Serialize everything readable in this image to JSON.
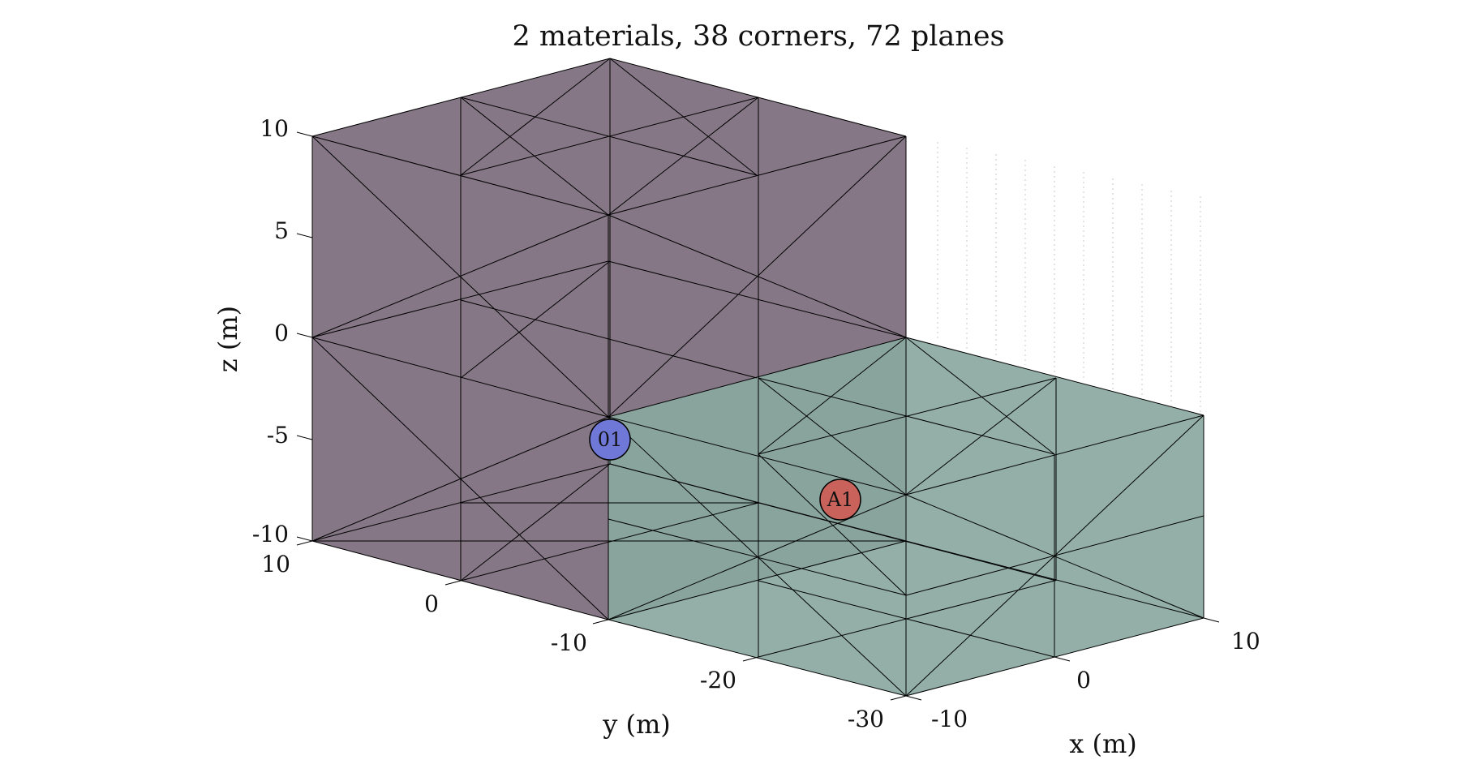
{
  "title": "2 materials, 38 corners, 72 planes",
  "axes": {
    "x": {
      "label": "x (m)",
      "ticks": [
        "-10",
        "0",
        "10"
      ]
    },
    "y": {
      "label": "y (m)",
      "ticks": [
        "10",
        "0",
        "-10",
        "-20",
        "-30"
      ]
    },
    "z": {
      "label": "z (m)",
      "ticks": [
        "10",
        "5",
        "0",
        "-5",
        "-10"
      ]
    }
  },
  "materials": [
    {
      "id": "material-1",
      "color": "#857785"
    },
    {
      "id": "material-2",
      "color": "#8aa8a0"
    }
  ],
  "sources": [
    {
      "label": "01",
      "color": "#6f78d6"
    }
  ],
  "receivers": [
    {
      "label": "A1",
      "color": "#c9625a"
    }
  ],
  "colors": {
    "edge": "#000000",
    "grid": "#c8c8c8",
    "background": "#ffffff"
  }
}
